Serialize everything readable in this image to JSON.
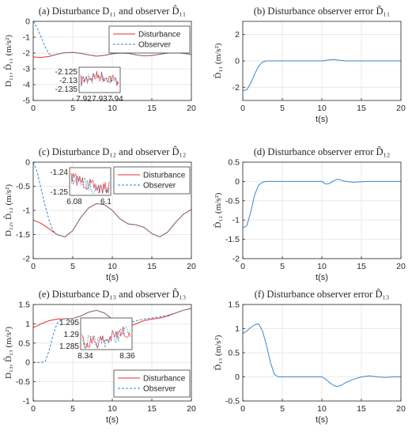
{
  "chart_data": [
    {
      "type": "line",
      "panel": "a",
      "title": "(a) Disturbance D₁₁ and observer D̂₁₁",
      "xlabel": "",
      "ylabel": "D₁₁, D̂₁₁ (m/s²)",
      "xlim": [
        0,
        20
      ],
      "ylim": [
        -5,
        0
      ],
      "xticks": [
        0,
        5,
        10,
        15,
        20
      ],
      "yticks": [
        -5,
        -4,
        -3,
        -2,
        -1,
        0
      ],
      "grid": true,
      "legend": "top-right",
      "series": [
        {
          "name": "Disturbance",
          "color": "#e8322c",
          "style": "solid",
          "x": [
            0,
            1,
            2,
            3,
            4,
            5,
            6,
            7,
            8,
            9,
            10,
            11,
            12,
            13,
            14,
            15,
            16,
            17,
            18,
            19,
            20
          ],
          "y": [
            -2.25,
            -2.28,
            -2.22,
            -2.08,
            -1.98,
            -1.96,
            -2.02,
            -2.12,
            -2.2,
            -2.15,
            -2.05,
            -2.0,
            -2.02,
            -2.12,
            -2.18,
            -2.16,
            -2.08,
            -2.0,
            -1.98,
            -2.02,
            -2.1
          ]
        },
        {
          "name": "Observer",
          "color": "#3a86c8",
          "style": "dashed",
          "x": [
            0,
            0.5,
            1,
            1.5,
            2,
            2.5,
            3,
            4,
            5,
            6,
            7,
            8,
            9,
            10,
            11,
            12,
            13,
            14,
            15,
            16,
            17,
            18,
            19,
            20
          ],
          "y": [
            0,
            -0.4,
            -1.0,
            -1.6,
            -2.05,
            -2.15,
            -2.08,
            -1.98,
            -1.96,
            -2.02,
            -2.12,
            -2.2,
            -2.15,
            -2.05,
            -2.0,
            -2.02,
            -2.12,
            -2.18,
            -2.16,
            -2.08,
            -2.0,
            -1.98,
            -2.02,
            -2.1
          ]
        }
      ],
      "inset": {
        "xticks": [
          "7.92",
          "7.93",
          "7.94"
        ],
        "yticks": [
          "-2.125",
          "-2.13",
          "-2.135"
        ]
      }
    },
    {
      "type": "line",
      "panel": "b",
      "title": "(b) Disturbance observer error D̃₁₁",
      "xlabel": "t(s)",
      "ylabel": "D̃₁₁ (m/s²)",
      "xlim": [
        0,
        20
      ],
      "ylim": [
        -3,
        3
      ],
      "xticks": [
        0,
        5,
        10,
        15,
        20
      ],
      "yticks": [
        -2,
        0,
        2
      ],
      "grid": true,
      "series": [
        {
          "name": "",
          "color": "#3a86c8",
          "style": "solid",
          "x": [
            0,
            0.5,
            1,
            1.5,
            2,
            2.5,
            3,
            4,
            6,
            8,
            10,
            10.5,
            11,
            11.5,
            12,
            12.5,
            13,
            14,
            16,
            18,
            20
          ],
          "y": [
            -2.25,
            -2.2,
            -1.7,
            -1.0,
            -0.4,
            -0.08,
            0.0,
            0.0,
            0.0,
            0.0,
            0.0,
            0.04,
            0.08,
            0.1,
            0.07,
            0.03,
            0.0,
            0.0,
            0.0,
            0.0,
            0.0
          ]
        }
      ]
    },
    {
      "type": "line",
      "panel": "c",
      "title": "(c) Disturbance D₁₂ and observer D̂₁₂",
      "xlabel": "t(s)",
      "ylabel": "D₁₂, D̂₁₂ (m/s²)",
      "xlim": [
        0,
        20
      ],
      "ylim": [
        -2,
        0
      ],
      "xticks": [
        0,
        5,
        10,
        15,
        20
      ],
      "yticks": [
        -2,
        -1.5,
        -1,
        -0.5,
        0
      ],
      "grid": true,
      "legend": "top-right",
      "series": [
        {
          "name": "Disturbance",
          "color": "#e8322c",
          "style": "solid",
          "x": [
            0,
            1,
            2,
            3,
            4,
            5,
            6,
            7,
            8,
            9,
            10,
            11,
            12,
            13,
            14,
            15,
            16,
            17,
            18,
            19,
            20
          ],
          "y": [
            -1.2,
            -1.27,
            -1.38,
            -1.5,
            -1.55,
            -1.42,
            -1.15,
            -0.95,
            -0.86,
            -0.88,
            -1.0,
            -1.18,
            -1.28,
            -1.3,
            -1.35,
            -1.48,
            -1.55,
            -1.45,
            -1.25,
            -1.08,
            -0.98
          ]
        },
        {
          "name": "Observer",
          "color": "#3a86c8",
          "style": "dashed",
          "x": [
            0,
            0.5,
            1,
            1.5,
            2,
            2.5,
            3,
            4,
            5,
            6,
            7,
            8,
            9,
            10,
            11,
            12,
            13,
            14,
            15,
            16,
            17,
            18,
            19,
            20
          ],
          "y": [
            0,
            -0.2,
            -0.55,
            -0.9,
            -1.2,
            -1.42,
            -1.5,
            -1.55,
            -1.42,
            -1.15,
            -0.95,
            -0.86,
            -0.88,
            -1.0,
            -1.18,
            -1.28,
            -1.3,
            -1.35,
            -1.48,
            -1.55,
            -1.45,
            -1.25,
            -1.08,
            -0.98
          ]
        }
      ],
      "inset": {
        "xticks": [
          "6.08",
          "6.1"
        ],
        "yticks": [
          "-1.24",
          "-1.25"
        ]
      }
    },
    {
      "type": "line",
      "panel": "d",
      "title": "(d) Disturbance observer error D̃₁₂",
      "xlabel": "t(s)",
      "ylabel": "D̃₁₂ (m/s²)",
      "xlim": [
        0,
        20
      ],
      "ylim": [
        -2,
        0.5
      ],
      "xticks": [
        0,
        5,
        10,
        15,
        20
      ],
      "yticks": [
        -2,
        -1.5,
        -1,
        -0.5,
        0,
        0.5
      ],
      "grid": true,
      "series": [
        {
          "name": "",
          "color": "#3a86c8",
          "style": "solid",
          "x": [
            0,
            0.5,
            1,
            1.5,
            2,
            2.5,
            3,
            4,
            6,
            8,
            10,
            10.5,
            11,
            11.5,
            12,
            12.5,
            13,
            14,
            16,
            18,
            20
          ],
          "y": [
            -1.2,
            -1.15,
            -0.8,
            -0.35,
            -0.1,
            -0.02,
            0.0,
            0.0,
            0.0,
            0.0,
            0.0,
            -0.07,
            -0.05,
            0.02,
            0.06,
            0.03,
            0.0,
            -0.02,
            0.0,
            0.0,
            0.0
          ]
        }
      ]
    },
    {
      "type": "line",
      "panel": "e",
      "title": "(e) Disturbance D₁₃ and observer D̂₁₃",
      "xlabel": "t(s)",
      "ylabel": "D₁₃, D̂₁₃ (m/s²)",
      "xlim": [
        0,
        20
      ],
      "ylim": [
        -1,
        1.5
      ],
      "xticks": [
        0,
        5,
        10,
        15,
        20
      ],
      "yticks": [
        -1,
        -0.5,
        0,
        0.5,
        1,
        1.5
      ],
      "grid": true,
      "legend": "bottom-right",
      "series": [
        {
          "name": "Disturbance",
          "color": "#e8322c",
          "style": "solid",
          "x": [
            0,
            1,
            2,
            3,
            4,
            5,
            6,
            7,
            8,
            9,
            10,
            11,
            12,
            13,
            14,
            15,
            16,
            17,
            18,
            19,
            20
          ],
          "y": [
            0.9,
            1.0,
            1.08,
            1.12,
            1.13,
            1.14,
            1.2,
            1.3,
            1.35,
            1.28,
            1.12,
            0.97,
            0.93,
            1.0,
            1.08,
            1.12,
            1.15,
            1.2,
            1.28,
            1.35,
            1.4
          ]
        },
        {
          "name": "Observer",
          "color": "#3a86c8",
          "style": "dashed",
          "x": [
            0,
            1,
            1.5,
            2,
            2.5,
            3,
            3.5,
            4,
            5,
            6,
            7,
            8,
            9,
            10,
            10.5,
            11,
            12,
            13,
            14,
            15,
            16,
            17,
            18,
            19,
            20
          ],
          "y": [
            0,
            0,
            0.02,
            0.3,
            0.7,
            1.0,
            1.1,
            1.13,
            1.14,
            1.2,
            1.3,
            1.35,
            1.28,
            1.12,
            1.02,
            1.0,
            1.02,
            1.08,
            1.12,
            1.15,
            1.18,
            1.22,
            1.28,
            1.35,
            1.4
          ]
        }
      ],
      "inset": {
        "xticks": [
          "8.34",
          "8.36"
        ],
        "yticks": [
          "1.295",
          "1.29",
          "1.285"
        ]
      }
    },
    {
      "type": "line",
      "panel": "f",
      "title": "(f) Disturbance observer error D̃₁₃",
      "xlabel": "t(s)",
      "ylabel": "D̃₁₃ (m/s²)",
      "xlim": [
        0,
        20
      ],
      "ylim": [
        -0.5,
        1.5
      ],
      "xticks": [
        0,
        5,
        10,
        15,
        20
      ],
      "yticks": [
        -0.5,
        0,
        0.5,
        1,
        1.5
      ],
      "grid": true,
      "series": [
        {
          "name": "",
          "color": "#3a86c8",
          "style": "solid",
          "x": [
            0,
            0.5,
            1,
            1.5,
            2,
            2.5,
            3,
            3.5,
            4,
            4.5,
            5,
            6,
            8,
            10,
            10.5,
            11,
            11.5,
            12,
            12.5,
            13,
            14,
            15,
            16,
            17,
            18,
            19,
            20
          ],
          "y": [
            0.9,
            0.95,
            1.02,
            1.08,
            1.1,
            0.95,
            0.65,
            0.3,
            0.05,
            0.0,
            0.0,
            0.0,
            0.0,
            0.0,
            -0.05,
            -0.12,
            -0.18,
            -0.2,
            -0.17,
            -0.12,
            -0.05,
            0.0,
            0.02,
            0.0,
            -0.01,
            0.0,
            0.0
          ]
        }
      ]
    }
  ]
}
